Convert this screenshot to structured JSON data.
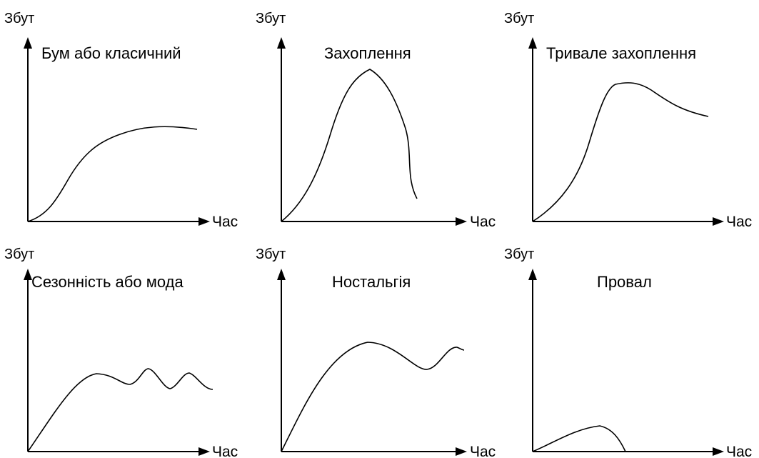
{
  "colors": {
    "background": "#ffffff",
    "ink": "#000000"
  },
  "panels": [
    {
      "id": "boom",
      "title": "Бум або класичний",
      "y_label": "Збут",
      "x_label": "Час"
    },
    {
      "id": "fad",
      "title": "Захоплення",
      "y_label": "Збут",
      "x_label": "Час"
    },
    {
      "id": "long-fad",
      "title": "Тривале захоплення",
      "y_label": "Збут",
      "x_label": "Час"
    },
    {
      "id": "seasonal",
      "title": "Сезонність або мода",
      "y_label": "Збут",
      "x_label": "Час"
    },
    {
      "id": "nostalgia",
      "title": "Ностальгія",
      "y_label": "Збут",
      "x_label": "Час"
    },
    {
      "id": "failure",
      "title": "Провал",
      "y_label": "Збут",
      "x_label": "Час"
    }
  ]
}
